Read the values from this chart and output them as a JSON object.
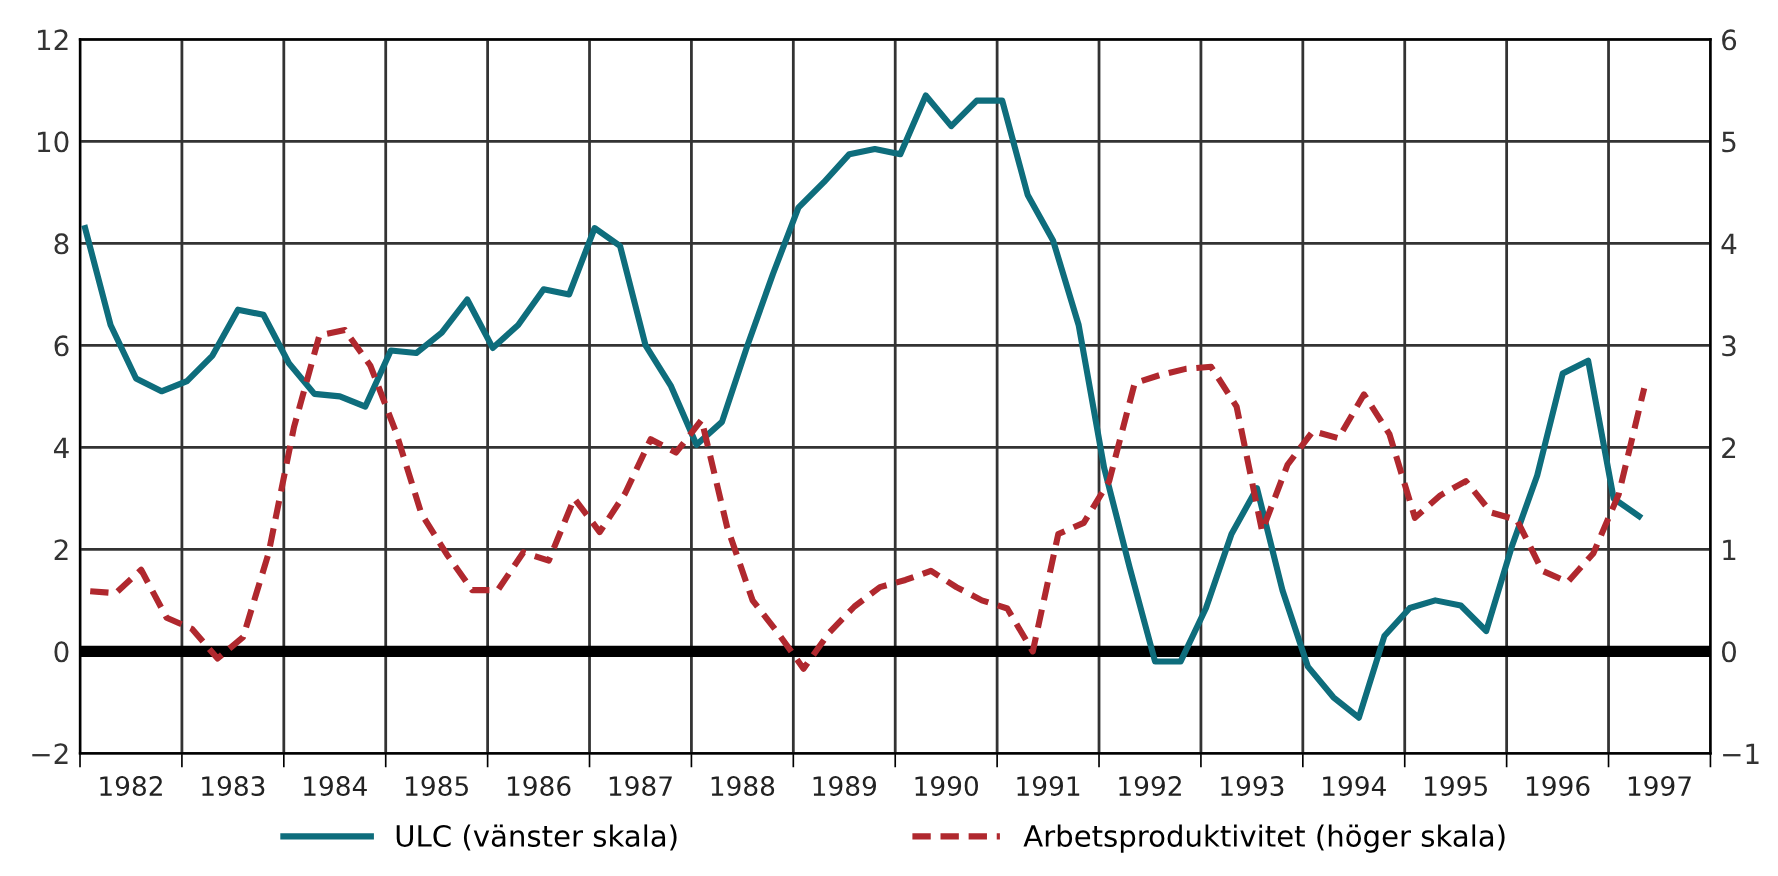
{
  "chart_data": {
    "type": "line",
    "grid": true,
    "legend": "bottom",
    "xlim": [
      1982,
      1998
    ],
    "xticks": [
      {
        "value": 1982,
        "label": null
      },
      {
        "value": 1982.5,
        "label": "1982"
      },
      {
        "value": 1983,
        "label": null
      },
      {
        "value": 1983.5,
        "label": "1983"
      },
      {
        "value": 1984,
        "label": null
      },
      {
        "value": 1984.5,
        "label": "1984"
      },
      {
        "value": 1985,
        "label": null
      },
      {
        "value": 1985.5,
        "label": "1985"
      },
      {
        "value": 1986,
        "label": null
      },
      {
        "value": 1986.5,
        "label": "1986"
      },
      {
        "value": 1987,
        "label": null
      },
      {
        "value": 1987.5,
        "label": "1987"
      },
      {
        "value": 1988,
        "label": null
      },
      {
        "value": 1988.5,
        "label": "1988"
      },
      {
        "value": 1989,
        "label": null
      },
      {
        "value": 1989.5,
        "label": "1989"
      },
      {
        "value": 1990,
        "label": null
      },
      {
        "value": 1990.5,
        "label": "1990"
      },
      {
        "value": 1991,
        "label": null
      },
      {
        "value": 1991.5,
        "label": "1991"
      },
      {
        "value": 1992,
        "label": null
      },
      {
        "value": 1992.5,
        "label": "1992"
      },
      {
        "value": 1993,
        "label": null
      },
      {
        "value": 1993.5,
        "label": "1993"
      },
      {
        "value": 1994,
        "label": null
      },
      {
        "value": 1994.5,
        "label": "1994"
      },
      {
        "value": 1995,
        "label": null
      },
      {
        "value": 1995.5,
        "label": "1995"
      },
      {
        "value": 1996,
        "label": null
      },
      {
        "value": 1996.5,
        "label": "1996"
      },
      {
        "value": 1997,
        "label": null
      },
      {
        "value": 1997.5,
        "label": "1997"
      },
      {
        "value": 1998,
        "label": null
      }
    ],
    "ylim": [
      -2,
      12
    ],
    "yticks": [
      {
        "value": -2,
        "label": "−2"
      },
      0,
      2,
      4,
      6,
      8,
      10,
      12
    ],
    "y2lim": [
      -1,
      6
    ],
    "y2ticks": [
      {
        "value": -1,
        "label": "−1"
      },
      0,
      1,
      2,
      3,
      4,
      5,
      6
    ],
    "ref_lines": [
      {
        "axis": "y",
        "value": 0,
        "label": null,
        "color": "#000000"
      }
    ],
    "series": [
      {
        "name": "ULC (vänster skala)",
        "color": "#0e6d7c",
        "line_style": "solid",
        "x": [
          1982.05,
          1982.3,
          1982.55,
          1982.8,
          1983.05,
          1983.3,
          1983.55,
          1983.8,
          1984.05,
          1984.3,
          1984.55,
          1984.8,
          1985.05,
          1985.3,
          1985.55,
          1985.8,
          1986.05,
          1986.3,
          1986.55,
          1986.8,
          1987.05,
          1987.3,
          1987.55,
          1987.8,
          1988.05,
          1988.3,
          1988.55,
          1988.8,
          1989.05,
          1989.3,
          1989.55,
          1989.8,
          1990.05,
          1990.3,
          1990.55,
          1990.8,
          1991.05,
          1991.3,
          1991.55,
          1991.8,
          1992.05,
          1992.3,
          1992.55,
          1992.8,
          1993.05,
          1993.3,
          1993.55,
          1993.8,
          1994.05,
          1994.3,
          1994.55,
          1994.8,
          1995.05,
          1995.3,
          1995.55,
          1995.8,
          1996.05,
          1996.3,
          1996.55,
          1996.8,
          1997.05,
          1997.3
        ],
        "values": [
          8.3,
          6.4,
          5.35,
          5.1,
          5.3,
          5.8,
          6.7,
          6.6,
          5.65,
          5.05,
          5.0,
          4.8,
          5.9,
          5.85,
          6.25,
          6.9,
          5.95,
          6.4,
          7.1,
          7.0,
          8.3,
          7.95,
          6.0,
          5.2,
          4.05,
          4.5,
          6.0,
          7.4,
          8.7,
          9.2,
          9.75,
          9.85,
          9.75,
          10.9,
          10.3,
          10.8,
          10.8,
          8.95,
          8.05,
          6.4,
          3.6,
          1.65,
          -0.2,
          -0.2,
          0.85,
          2.3,
          3.2,
          1.2,
          -0.3,
          -0.9,
          -1.3,
          0.3,
          0.85,
          1.0,
          0.9,
          0.4,
          2.05,
          3.45,
          5.45,
          5.7,
          3.0,
          2.65
        ]
      },
      {
        "name": "Arbetsproduktivitet (höger skala)",
        "color": "#b0282e",
        "line_style": "dashed",
        "axis": "y2",
        "x": [
          1982.1,
          1982.35,
          1982.6,
          1982.85,
          1983.1,
          1983.35,
          1983.6,
          1983.85,
          1984.1,
          1984.35,
          1984.6,
          1984.85,
          1985.1,
          1985.35,
          1985.6,
          1985.85,
          1986.1,
          1986.35,
          1986.6,
          1986.85,
          1987.1,
          1987.35,
          1987.6,
          1987.85,
          1988.1,
          1988.35,
          1988.6,
          1988.85,
          1989.1,
          1989.35,
          1989.6,
          1989.85,
          1990.1,
          1990.35,
          1990.6,
          1990.85,
          1991.1,
          1991.35,
          1991.6,
          1991.85,
          1992.1,
          1992.35,
          1992.6,
          1992.85,
          1993.1,
          1993.35,
          1993.6,
          1993.85,
          1994.1,
          1994.35,
          1994.6,
          1994.85,
          1995.1,
          1995.35,
          1995.6,
          1995.85,
          1996.1,
          1996.35,
          1996.6,
          1996.85,
          1997.1,
          1997.35
        ],
        "values": [
          0.59,
          0.57,
          0.8,
          0.33,
          0.22,
          -0.07,
          0.14,
          0.96,
          2.2,
          3.1,
          3.15,
          2.8,
          2.15,
          1.35,
          0.95,
          0.6,
          0.6,
          0.97,
          0.89,
          1.5,
          1.17,
          1.55,
          2.08,
          1.95,
          2.27,
          1.22,
          0.5,
          0.18,
          -0.17,
          0.18,
          0.44,
          0.63,
          0.7,
          0.79,
          0.63,
          0.5,
          0.42,
          0.0,
          1.15,
          1.26,
          1.67,
          2.63,
          2.71,
          2.77,
          2.79,
          2.4,
          1.18,
          1.83,
          2.16,
          2.09,
          2.52,
          2.13,
          1.31,
          1.53,
          1.67,
          1.36,
          1.29,
          0.79,
          0.68,
          0.96,
          1.54,
          2.58
        ]
      }
    ]
  }
}
